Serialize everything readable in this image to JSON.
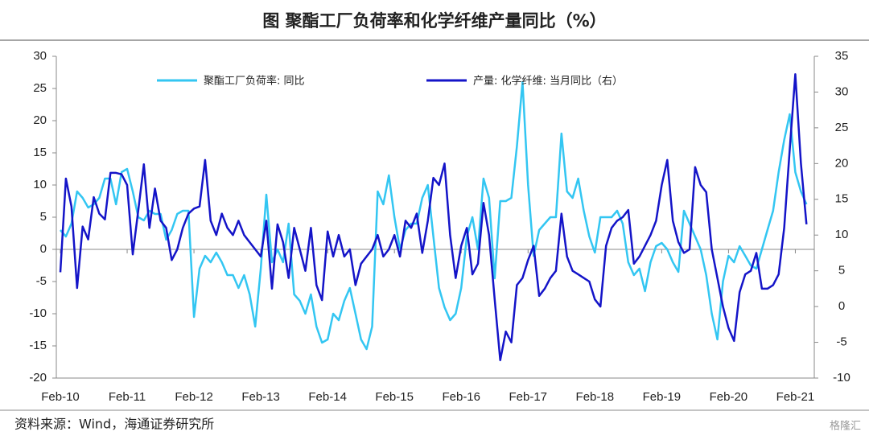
{
  "chart_data": {
    "type": "line",
    "title": "图  聚酯工厂负荷率和化学纤维产量同比（%）",
    "source": "资料来源：Wind，海通证券研究所",
    "watermark": "格隆汇",
    "categories": [
      "Feb-10",
      null,
      null,
      null,
      null,
      null,
      null,
      null,
      null,
      null,
      null,
      null,
      "Feb-11",
      null,
      null,
      null,
      null,
      null,
      null,
      null,
      null,
      null,
      null,
      null,
      "Feb-12",
      null,
      null,
      null,
      null,
      null,
      null,
      null,
      null,
      null,
      null,
      null,
      "Feb-13",
      null,
      null,
      null,
      null,
      null,
      null,
      null,
      null,
      null,
      null,
      null,
      "Feb-14",
      null,
      null,
      null,
      null,
      null,
      null,
      null,
      null,
      null,
      null,
      null,
      "Feb-15",
      null,
      null,
      null,
      null,
      null,
      null,
      null,
      null,
      null,
      null,
      null,
      "Feb-16",
      null,
      null,
      null,
      null,
      null,
      null,
      null,
      null,
      null,
      null,
      null,
      "Feb-17",
      null,
      null,
      null,
      null,
      null,
      null,
      null,
      null,
      null,
      null,
      null,
      "Feb-18",
      null,
      null,
      null,
      null,
      null,
      null,
      null,
      null,
      null,
      null,
      null,
      "Feb-19",
      null,
      null,
      null,
      null,
      null,
      null,
      null,
      null,
      null,
      null,
      null,
      "Feb-20",
      null,
      null,
      null,
      null,
      null,
      null,
      null,
      null,
      null,
      null,
      null,
      "Feb-21",
      null,
      null
    ],
    "series": [
      {
        "name": "聚酯工厂负荷率: 同比",
        "color": "#33c6f2",
        "axis": "y",
        "values": [
          3,
          2,
          4,
          9,
          8,
          6.5,
          7,
          8,
          11,
          11,
          7,
          12,
          12.5,
          9,
          5,
          4.5,
          6,
          5.5,
          5.5,
          1.5,
          3,
          5.5,
          6,
          6,
          -10.5,
          -3,
          -1,
          -2,
          -0.5,
          -2,
          -4,
          -4,
          -6,
          -4,
          -7,
          -12,
          -3,
          8.5,
          -2,
          0,
          -2,
          4,
          -7,
          -8,
          -10,
          -7,
          -12,
          -14.5,
          -14,
          -10,
          -11,
          -8,
          -6,
          -10,
          -14,
          -15.5,
          -12,
          9,
          7,
          11.5,
          5,
          0,
          3,
          4,
          4,
          8,
          10,
          2,
          -6,
          -9,
          -11,
          -10,
          -6,
          2,
          5,
          0,
          11,
          8,
          -4.5,
          7.5,
          7.5,
          8,
          16,
          26,
          10,
          -1,
          3,
          4,
          5,
          5,
          18,
          9,
          8,
          11,
          6,
          2,
          -0.5,
          5,
          5,
          5,
          6,
          4,
          -2,
          -4,
          -3,
          -6.5,
          -2,
          0.5,
          1,
          0,
          -2,
          -3.5,
          6,
          4,
          2,
          0,
          -4,
          -10,
          -14,
          -5,
          -1,
          -2,
          0.5,
          -1,
          -2.5,
          -3,
          0,
          3,
          6,
          12,
          17,
          21,
          12,
          9,
          7
        ]
      },
      {
        "name": "产量: 化学纤维: 当月同比（右）",
        "color": "#1414c8",
        "axis": "y2",
        "values": [
          4.8,
          17.9,
          14,
          2.6,
          11.2,
          9.4,
          15.3,
          13,
          12.2,
          18.7,
          18.7,
          18.5,
          17,
          7.3,
          13.5,
          19.9,
          11,
          16.5,
          12,
          11,
          6.5,
          8,
          11,
          13,
          13.7,
          14,
          20.5,
          12,
          10,
          13,
          11,
          10,
          12,
          10,
          9,
          8,
          7,
          12,
          2.5,
          11.5,
          9,
          4,
          11,
          8,
          5,
          11,
          3,
          0.9,
          10.5,
          7,
          10,
          7,
          8,
          3,
          6,
          7,
          8,
          10,
          7,
          8,
          10,
          7,
          12,
          11,
          13,
          7.5,
          12,
          18,
          17,
          20,
          10,
          4,
          8.5,
          11,
          4.5,
          6,
          14.5,
          10,
          1,
          -7.5,
          -3.5,
          -5,
          3,
          4,
          6.5,
          8.5,
          1.5,
          2.5,
          4,
          5,
          13,
          7,
          5,
          4.5,
          4,
          3.5,
          1,
          0,
          8.5,
          11,
          12,
          12.5,
          13.5,
          6,
          7,
          8.5,
          10,
          12,
          17,
          20.5,
          12,
          9,
          7.5,
          8,
          19.5,
          17,
          16,
          8,
          4,
          0,
          -3,
          -4.8,
          2,
          4.5,
          5,
          7.5,
          2.5,
          2.5,
          3,
          4.5,
          11,
          22,
          32.5,
          20,
          11.5
        ]
      }
    ],
    "ylim": [
      -20,
      30
    ],
    "yticks": [
      -20,
      -15,
      -10,
      -5,
      0,
      5,
      10,
      15,
      20,
      25,
      30
    ],
    "y2lim": [
      -10,
      35
    ],
    "y2ticks": [
      -10,
      -5,
      0,
      5,
      10,
      15,
      20,
      25,
      30,
      35
    ],
    "legend": "top"
  }
}
